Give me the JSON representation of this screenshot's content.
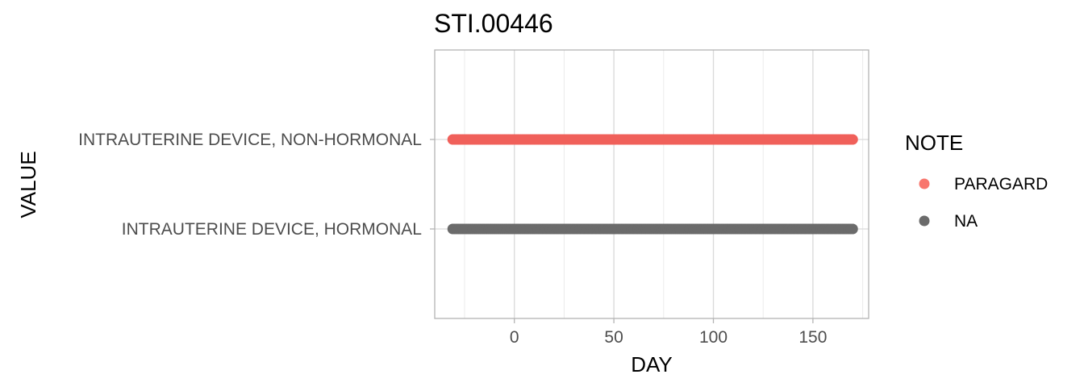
{
  "chart_data": {
    "type": "scatter",
    "title": "STI.00446",
    "xlabel": "DAY",
    "ylabel": "VALUE",
    "xlim": [
      -40,
      178
    ],
    "x_ticks": [
      0,
      50,
      100,
      150
    ],
    "x_tick_labels": [
      "0",
      "50",
      "100",
      "150"
    ],
    "categories": [
      "INTRAUTERINE DEVICE, HORMONAL",
      "INTRAUTERINE DEVICE, NON-HORMONAL"
    ],
    "grid": true,
    "legend": {
      "title": "NOTE",
      "position": "right",
      "items": [
        {
          "label": "PARAGARD",
          "color": "#F8766D"
        },
        {
          "label": "NA",
          "color": "#6B6B6B"
        }
      ]
    },
    "series": [
      {
        "name": "PARAGARD",
        "color": "#F0605A",
        "category": "INTRAUTERINE DEVICE, NON-HORMONAL",
        "x_start": -31,
        "x_end": 170
      },
      {
        "name": "NA",
        "color": "#6B6B6B",
        "category": "INTRAUTERINE DEVICE, HORMONAL",
        "x_start": -31,
        "x_end": 170
      }
    ]
  }
}
